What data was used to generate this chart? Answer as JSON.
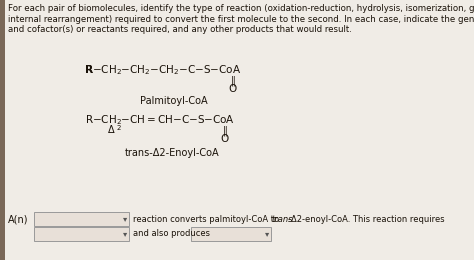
{
  "bg_color": "#f0ece6",
  "white_bg": "#f0ece6",
  "header_text_lines": [
    "For each pair of biomolecules, identify the type of reaction (oxidation-reduction, hydrolysis, isomerization, group transfer, or",
    "internal rearrangement) required to convert the first molecule to the second. In each case, indicate the general type of enzyme",
    "and cofactor(s) or reactants required, and any other products that would result."
  ],
  "molecule1_name": "Palmitoyl-CoA",
  "molecule2_name": "trans-Δ2-Enoyl-CoA",
  "label_A": "A(n)",
  "reaction_text": "reaction converts palmitoyl-CoA to ",
  "reaction_text_italic": "trans",
  "reaction_text2": "-Δ2-enoyl-CoA. This reaction requires",
  "and_also_text": "and also produces",
  "font_color": "#1a1209",
  "box_bg": "#e8e0d8",
  "box_border": "#999999",
  "sidebar_color": "#8a7060"
}
